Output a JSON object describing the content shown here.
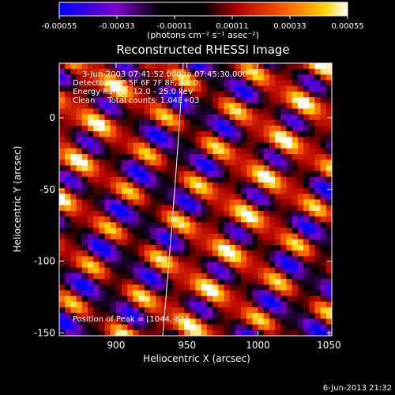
{
  "colorbar": {
    "ticks": [
      "-0.00055",
      "-0.00033",
      "-0.00011",
      "0.00011",
      "0.00033",
      "0.00055"
    ],
    "unit_label": "(photons cm⁻² s⁻¹ asec⁻²)"
  },
  "chart_data": {
    "type": "heatmap",
    "title": "Reconstructed RHESSI Image",
    "xlabel": "Heliocentric X (arcsec)",
    "ylabel": "Heliocentric Y (arcsec)",
    "xlim": [
      860,
      1052
    ],
    "ylim": [
      -152,
      38
    ],
    "x_ticks": [
      900,
      950,
      1000,
      1050
    ],
    "y_ticks": [
      0,
      -50,
      -100,
      -150
    ],
    "color_range": [
      -0.00055,
      0.00055
    ],
    "colormap_stops": [
      "#0000ff",
      "#7a00c8",
      "#000000",
      "#b00000",
      "#ff5a00",
      "#ffd200",
      "#ffffff"
    ],
    "annotations": [
      "3-Jun-2003 07:41:52.000 to 07:45:30.000",
      "Detectors: 4F 5F 6F 7F 8F, Att 0",
      "Energy Range: 12.0 - 25.0 keV",
      "Clean     Total counts: 1.04E+03",
      "Position of Peak = [1044,-81]"
    ],
    "peak_position": [
      1044,
      -81
    ]
  },
  "footer": {
    "timestamp": "6-Jun-2013 21:32"
  }
}
